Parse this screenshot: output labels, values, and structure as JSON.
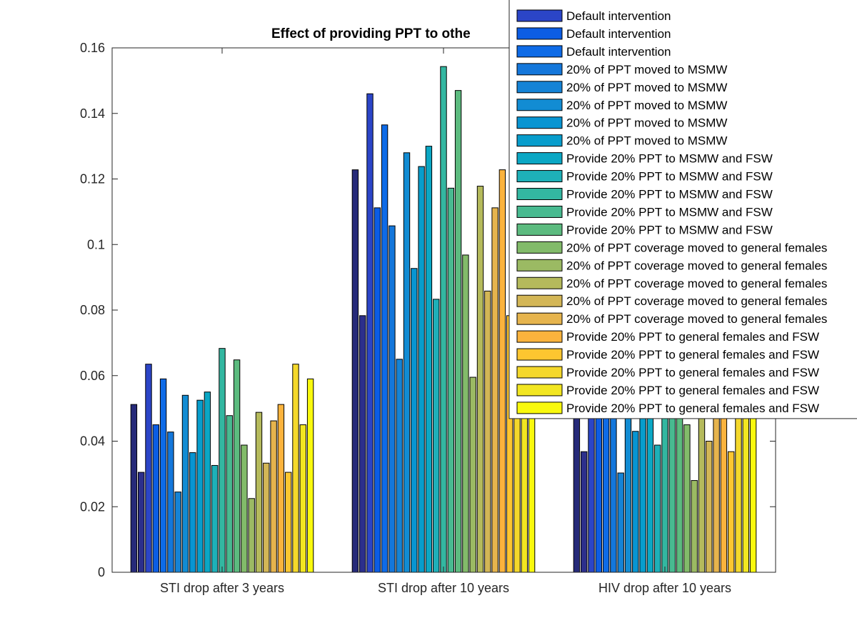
{
  "chart_data": {
    "type": "bar",
    "title": "Effect of providing PPT to othe",
    "categories": [
      "STI drop after 3 years",
      "STI drop after 10 years",
      "HIV drop after 10 years"
    ],
    "ylim": [
      0,
      0.16
    ],
    "yticks": [
      "0",
      "0.02",
      "0.04",
      "0.06",
      "0.08",
      "0.1",
      "0.12",
      "0.14",
      "0.16"
    ],
    "grid": false,
    "legend_position": "top-right",
    "series": [
      {
        "name": "Default intervention",
        "color": "#262a79",
        "values": [
          0.0512,
          0.1228,
          0.065
        ]
      },
      {
        "name": "Default intervention",
        "color": "#2c2f8c",
        "values": [
          0.0305,
          0.0783,
          0.0368
        ]
      },
      {
        "name": "Default intervention",
        "color": "#2b45c7",
        "values": [
          0.0635,
          0.146,
          0.06
        ]
      },
      {
        "name": "Default intervention",
        "color": "#0c5de4",
        "values": [
          0.045,
          0.1112,
          0.0515
        ]
      },
      {
        "name": "Default intervention",
        "color": "#0e6be7",
        "values": [
          0.059,
          0.1365,
          0.06
        ]
      },
      {
        "name": "20% of PPT moved to MSMW",
        "color": "#1477db",
        "values": [
          0.0428,
          0.1057,
          0.052
        ]
      },
      {
        "name": "20% of PPT moved to MSMW",
        "color": "#1583d6",
        "values": [
          0.0245,
          0.065,
          0.0303
        ]
      },
      {
        "name": "20% of PPT moved to MSMW",
        "color": "#128cd3",
        "values": [
          0.054,
          0.128,
          0.0485
        ]
      },
      {
        "name": "20% of PPT moved to MSMW",
        "color": "#0895d2",
        "values": [
          0.0365,
          0.0927,
          0.043
        ]
      },
      {
        "name": "20% of PPT moved to MSMW",
        "color": "#079dcc",
        "values": [
          0.0525,
          0.1238,
          0.06
        ]
      },
      {
        "name": "Provide 20% PPT to MSMW and FSW",
        "color": "#0ba7c4",
        "values": [
          0.055,
          0.13,
          0.055
        ]
      },
      {
        "name": "Provide 20% PPT to MSMW and FSW",
        "color": "#1eb0b8",
        "values": [
          0.0326,
          0.0833,
          0.0388
        ]
      },
      {
        "name": "Provide 20% PPT to MSMW and FSW",
        "color": "#33b7a1",
        "values": [
          0.0683,
          0.1543,
          0.06
        ]
      },
      {
        "name": "Provide 20% PPT to MSMW and FSW",
        "color": "#48ba90",
        "values": [
          0.0478,
          0.1172,
          0.06
        ]
      },
      {
        "name": "Provide 20% PPT to MSMW and FSW",
        "color": "#5cbb7f",
        "values": [
          0.0648,
          0.147,
          0.06
        ]
      },
      {
        "name": "20% of PPT coverage moved to general females",
        "color": "#82bb6a",
        "values": [
          0.0388,
          0.0968,
          0.045
        ]
      },
      {
        "name": "20% of PPT coverage moved to general females",
        "color": "#9bba63",
        "values": [
          0.0225,
          0.0595,
          0.028
        ]
      },
      {
        "name": "20% of PPT coverage moved to general females",
        "color": "#b5ba5c",
        "values": [
          0.0488,
          0.1178,
          0.06
        ]
      },
      {
        "name": "20% of PPT coverage moved to general females",
        "color": "#d3b656",
        "values": [
          0.0333,
          0.0858,
          0.04
        ]
      },
      {
        "name": "20% of PPT coverage moved to general females",
        "color": "#e6b44d",
        "values": [
          0.0462,
          0.1112,
          0.0513
        ]
      },
      {
        "name": "Provide 20% PPT to general females and FSW",
        "color": "#fbb33d",
        "values": [
          0.0512,
          0.1228,
          0.06
        ]
      },
      {
        "name": "Provide 20% PPT to general females and FSW",
        "color": "#fdc630",
        "values": [
          0.0305,
          0.0783,
          0.0368
        ]
      },
      {
        "name": "Provide 20% PPT to general females and FSW",
        "color": "#f4d82b",
        "values": [
          0.0635,
          0.07,
          0.06
        ]
      },
      {
        "name": "Provide 20% PPT to general females and FSW",
        "color": "#f2e621",
        "values": [
          0.045,
          0.07,
          0.0515
        ]
      },
      {
        "name": "Provide 20% PPT to general females and FSW",
        "color": "#f9f90d",
        "values": [
          0.059,
          0.07,
          0.06
        ]
      }
    ],
    "legend_visible_entries": [
      {
        "label": "Default intervention",
        "color": "#2b45c7"
      },
      {
        "label": "Default intervention",
        "color": "#0c5de4"
      },
      {
        "label": "Default intervention",
        "color": "#0e6be7"
      },
      {
        "label": "20% of PPT moved to MSMW",
        "color": "#1477db"
      },
      {
        "label": "20% of PPT moved to MSMW",
        "color": "#1583d6"
      },
      {
        "label": "20% of PPT moved to MSMW",
        "color": "#128cd3"
      },
      {
        "label": "20% of PPT moved to MSMW",
        "color": "#0895d2"
      },
      {
        "label": "20% of PPT moved to MSMW",
        "color": "#079dcc"
      },
      {
        "label": "Provide 20% PPT to MSMW and FSW",
        "color": "#0ba7c4"
      },
      {
        "label": "Provide 20% PPT to MSMW and FSW",
        "color": "#1eb0b8"
      },
      {
        "label": "Provide 20% PPT to MSMW and FSW",
        "color": "#33b7a1"
      },
      {
        "label": "Provide 20% PPT to MSMW and FSW",
        "color": "#48ba90"
      },
      {
        "label": "Provide 20% PPT to MSMW and FSW",
        "color": "#5cbb7f"
      },
      {
        "label": "20% of PPT coverage moved to general females",
        "color": "#82bb6a"
      },
      {
        "label": "20% of PPT coverage moved to general females",
        "color": "#9bba63"
      },
      {
        "label": "20% of PPT coverage moved to general females",
        "color": "#b5ba5c"
      },
      {
        "label": "20% of PPT coverage moved to general females",
        "color": "#d3b656"
      },
      {
        "label": "20% of PPT coverage moved to general females",
        "color": "#e6b44d"
      },
      {
        "label": "Provide 20% PPT to general females and FSW",
        "color": "#fbb33d"
      },
      {
        "label": "Provide 20% PPT to general females and FSW",
        "color": "#fdc630"
      },
      {
        "label": "Provide 20% PPT to general females and FSW",
        "color": "#f4d82b"
      },
      {
        "label": "Provide 20% PPT to general females and FSW",
        "color": "#f2e621"
      },
      {
        "label": "Provide 20% PPT to general females and FSW",
        "color": "#f9f90d"
      }
    ]
  }
}
